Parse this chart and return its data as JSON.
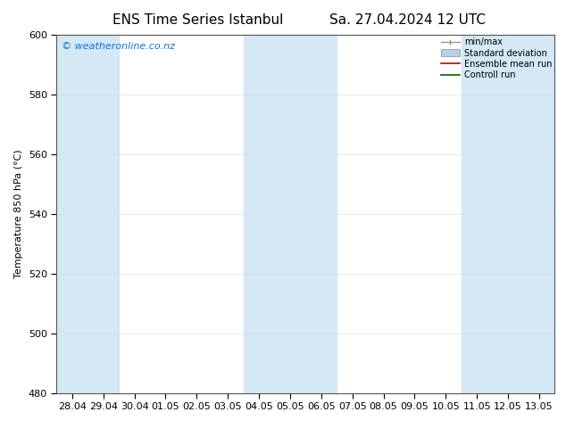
{
  "title_left": "ENS Time Series Istanbul",
  "title_right": "Sa. 27.04.2024 12 UTC",
  "ylabel": "Temperature 850 hPa (°C)",
  "ylim": [
    480,
    600
  ],
  "yticks": [
    480,
    500,
    520,
    540,
    560,
    580,
    600
  ],
  "x_labels": [
    "28.04",
    "29.04",
    "30.04",
    "01.05",
    "02.05",
    "03.05",
    "04.05",
    "05.05",
    "06.05",
    "07.05",
    "08.05",
    "09.05",
    "10.05",
    "11.05",
    "12.05",
    "13.05"
  ],
  "x_values": [
    0,
    1,
    2,
    3,
    4,
    5,
    6,
    7,
    8,
    9,
    10,
    11,
    12,
    13,
    14,
    15
  ],
  "watermark": "© weatheronline.co.nz",
  "watermark_color": "#1a6fcd",
  "bg_color": "#ffffff",
  "plot_bg_color": "#ffffff",
  "shaded_band_color": "#d4e8f5",
  "shaded_columns": [
    0,
    1,
    6,
    7,
    8,
    13,
    14,
    15
  ],
  "legend_labels": [
    "min/max",
    "Standard deviation",
    "Ensemble mean run",
    "Controll run"
  ],
  "legend_colors_line": [
    "#999999",
    "#b8d0e8",
    "#cc0000",
    "#006400"
  ],
  "title_fontsize": 11,
  "axis_label_fontsize": 8,
  "tick_fontsize": 8,
  "watermark_fontsize": 8,
  "legend_fontsize": 7
}
